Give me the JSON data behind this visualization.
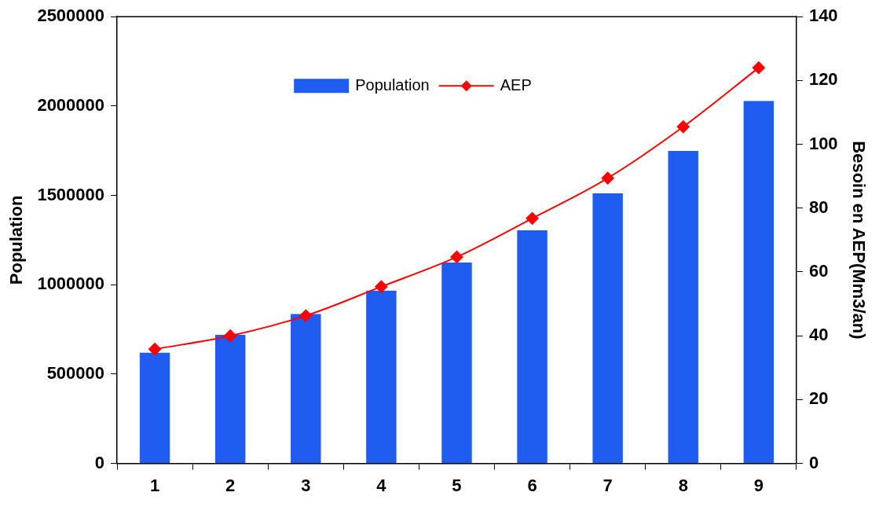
{
  "chart_data": {
    "type": "bar",
    "categories": [
      "1",
      "2",
      "3",
      "4",
      "5",
      "6",
      "7",
      "8",
      "9"
    ],
    "ylabel": "Population",
    "y2label": "Besoin en AEP(Mm3/an)",
    "ylim": [
      0,
      2500000
    ],
    "yticks": [
      0,
      500000,
      1000000,
      1500000,
      2000000,
      2500000
    ],
    "y2lim": [
      0,
      140
    ],
    "y2ticks": [
      0,
      20,
      40,
      60,
      80,
      100,
      120,
      140
    ],
    "grid": false,
    "legend": "top",
    "marker": "diamond",
    "line_style": "solid",
    "series": [
      {
        "name": "Population",
        "color": "#1f5cf0",
        "values": [
          620000,
          720000,
          836000,
          967000,
          1124000,
          1304000,
          1511000,
          1749000,
          2028000
        ]
      },
      {
        "name": "AEP",
        "type": "line",
        "axis": "y2",
        "color": "#ff0000",
        "values": [
          35.8,
          40,
          46.3,
          55.4,
          64.7,
          76.8,
          89.4,
          105.5,
          124
        ]
      }
    ]
  }
}
